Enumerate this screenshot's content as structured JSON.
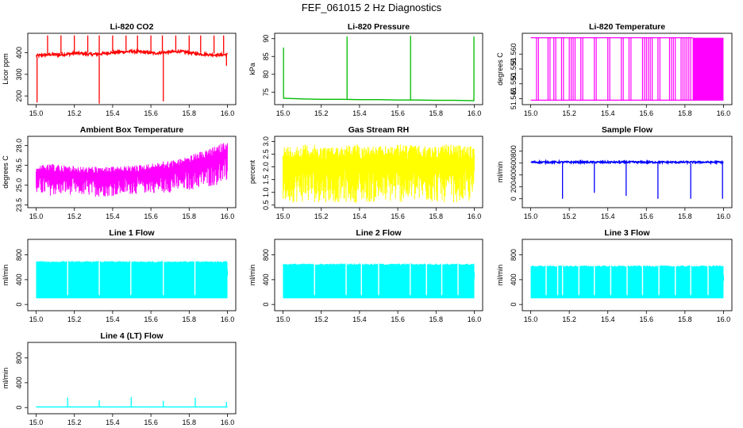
{
  "figure": {
    "title": "FEF_061015  2 Hz Diagnostics"
  },
  "chart_data": [
    {
      "type": "line",
      "title": "Li-820 CO2",
      "ylabel": "Licor ppm",
      "xlabel": "",
      "xlim": [
        15.0,
        16.0
      ],
      "ylim": [
        160,
        490
      ],
      "xticks": [
        15.0,
        15.2,
        15.4,
        15.6,
        15.8,
        16.0
      ],
      "xtick_labels": [
        "15.0",
        "15.2",
        "15.4",
        "15.6",
        "15.8",
        "16.0"
      ],
      "yticks": [
        200,
        300,
        400
      ],
      "ytick_labels": [
        "200",
        "300",
        "400"
      ],
      "color": "#ff0000",
      "style": "band",
      "band_lo": [
        380,
        383,
        386,
        384,
        388,
        392,
        389,
        386,
        388,
        393,
        396,
        398,
        400,
        398,
        394,
        392,
        395,
        398,
        400,
        396,
        390,
        387,
        385,
        384,
        386
      ],
      "band_hi": [
        392,
        396,
        398,
        397,
        400,
        405,
        402,
        399,
        401,
        406,
        409,
        411,
        413,
        410,
        407,
        404,
        407,
        410,
        412,
        408,
        402,
        399,
        397,
        396,
        398
      ],
      "spikes_up": [
        {
          "x": 15.06,
          "y": 480
        },
        {
          "x": 15.13,
          "y": 480
        },
        {
          "x": 15.2,
          "y": 480
        },
        {
          "x": 15.27,
          "y": 480
        },
        {
          "x": 15.33,
          "y": 480
        },
        {
          "x": 15.4,
          "y": 480
        },
        {
          "x": 15.47,
          "y": 480
        },
        {
          "x": 15.53,
          "y": 480
        },
        {
          "x": 15.6,
          "y": 480
        },
        {
          "x": 15.66,
          "y": 480
        },
        {
          "x": 15.73,
          "y": 480
        },
        {
          "x": 15.8,
          "y": 480
        },
        {
          "x": 15.86,
          "y": 480
        },
        {
          "x": 15.93,
          "y": 480
        },
        {
          "x": 15.98,
          "y": 480
        }
      ],
      "spikes_down": [
        {
          "x": 15.005,
          "y": 170
        },
        {
          "x": 15.33,
          "y": 165
        },
        {
          "x": 15.665,
          "y": 175
        },
        {
          "x": 15.995,
          "y": 340
        }
      ]
    },
    {
      "type": "line",
      "title": "Li-820 Pressure",
      "ylabel": "kPa",
      "xlabel": "",
      "xlim": [
        15.0,
        16.0
      ],
      "ylim": [
        71.5,
        91.5
      ],
      "xticks": [
        15.0,
        15.2,
        15.4,
        15.6,
        15.8,
        16.0
      ],
      "xtick_labels": [
        "15.0",
        "15.2",
        "15.4",
        "15.6",
        "15.8",
        "16.0"
      ],
      "yticks": [
        75,
        80,
        85,
        90
      ],
      "ytick_labels": [
        "75",
        "80",
        "85",
        "90"
      ],
      "color": "#00bb00",
      "style": "line",
      "x": [
        15.0,
        15.1,
        15.2,
        15.3,
        15.4,
        15.5,
        15.6,
        15.7,
        15.8,
        15.9,
        16.0
      ],
      "y": [
        73.3,
        73.1,
        73.0,
        73.0,
        72.9,
        72.9,
        72.8,
        72.8,
        72.7,
        72.7,
        72.6
      ],
      "spikes_up": [
        {
          "x": 15.003,
          "y": 87.5
        },
        {
          "x": 15.335,
          "y": 90.6
        },
        {
          "x": 15.667,
          "y": 90.8
        },
        {
          "x": 15.998,
          "y": 90.6
        }
      ]
    },
    {
      "type": "line",
      "title": "Li-820 Temperature",
      "ylabel": "degrees C",
      "xlabel": "",
      "xlim": [
        15.0,
        16.0
      ],
      "ylim": [
        51.543,
        51.567
      ],
      "xticks": [
        15.0,
        15.2,
        15.4,
        15.6,
        15.8,
        16.0
      ],
      "xtick_labels": [
        "15.0",
        "15.2",
        "15.4",
        "15.6",
        "15.8",
        "16.0"
      ],
      "yticks": [
        51.545,
        51.55,
        51.555,
        51.56
      ],
      "ytick_labels": [
        "51.545",
        "51.550",
        "51.555",
        "51.560"
      ],
      "color": "#ff00ff",
      "style": "steps",
      "low": 51.5445,
      "high": 51.5655,
      "toggles": [
        15.03,
        15.04,
        15.09,
        15.1,
        15.12,
        15.13,
        15.16,
        15.17,
        15.2,
        15.21,
        15.22,
        15.23,
        15.26,
        15.27,
        15.33,
        15.34,
        15.4,
        15.41,
        15.47,
        15.48,
        15.51,
        15.52,
        15.58,
        15.59,
        15.6,
        15.61,
        15.62,
        15.63,
        15.66,
        15.67,
        15.72,
        15.73,
        15.74,
        15.75,
        15.78,
        15.79,
        15.8,
        15.81,
        15.82,
        15.83
      ],
      "dense_from": 15.84
    },
    {
      "type": "line",
      "title": "Ambient Box Temperature",
      "ylabel": "degrees C",
      "xlabel": "",
      "xlim": [
        15.0,
        16.0
      ],
      "ylim": [
        23.3,
        28.7
      ],
      "xticks": [
        15.0,
        15.2,
        15.4,
        15.6,
        15.8,
        16.0
      ],
      "xtick_labels": [
        "15.0",
        "15.2",
        "15.4",
        "15.6",
        "15.8",
        "16.0"
      ],
      "yticks": [
        23.5,
        25.0,
        26.5,
        28.0
      ],
      "ytick_labels": [
        "23.5",
        "25.0",
        "26.5",
        "28.0"
      ],
      "color": "#ff00ff",
      "style": "noise",
      "band_lo": [
        24.3,
        24.2,
        24.3,
        24.2,
        24.1,
        24.2,
        24.3,
        24.4,
        24.4,
        24.5,
        24.7,
        24.9,
        25.2
      ],
      "band_hi": [
        26.5,
        26.6,
        26.5,
        26.4,
        26.4,
        26.4,
        26.5,
        26.6,
        26.8,
        27.0,
        27.4,
        27.8,
        28.4
      ]
    },
    {
      "type": "line",
      "title": "Gas Stream RH",
      "ylabel": "percent",
      "xlabel": "",
      "xlim": [
        15.0,
        16.0
      ],
      "ylim": [
        0.4,
        3.2
      ],
      "xticks": [
        15.0,
        15.2,
        15.4,
        15.6,
        15.8,
        16.0
      ],
      "xtick_labels": [
        "15.0",
        "15.2",
        "15.4",
        "15.6",
        "15.8",
        "16.0"
      ],
      "yticks": [
        0.5,
        1.0,
        1.5,
        2.0,
        2.5,
        3.0
      ],
      "ytick_labels": [
        "0.5",
        "1.0",
        "1.5",
        "2.0",
        "2.5",
        "3.0"
      ],
      "color": "#ffff00",
      "style": "noise",
      "band_lo": [
        0.6,
        0.6,
        0.6,
        0.6,
        0.6,
        0.6,
        0.6,
        0.6,
        0.6
      ],
      "band_hi": [
        2.8,
        2.9,
        2.8,
        2.9,
        2.8,
        2.9,
        2.8,
        2.9,
        2.8
      ]
    },
    {
      "type": "line",
      "title": "Sample Flow",
      "ylabel": "ml/min",
      "xlabel": "",
      "xlim": [
        15.0,
        16.0
      ],
      "ylim": [
        -0.15,
        1.05
      ],
      "xticks": [
        15.0,
        15.2,
        15.4,
        15.6,
        15.8,
        16.0
      ],
      "xtick_labels": [
        "15.0",
        "15.2",
        "15.4",
        "15.6",
        "15.8",
        "16.0"
      ],
      "yticks": [
        0,
        0.2,
        0.4,
        0.6,
        0.8
      ],
      "ytick_labels": [
        "0",
        "200",
        "400",
        "600",
        "800"
      ],
      "color": "#0000ff",
      "style": "band",
      "band_lo": [
        0.6,
        0.6,
        0.6,
        0.6,
        0.6,
        0.6,
        0.6
      ],
      "band_hi": [
        0.63,
        0.63,
        0.63,
        0.63,
        0.63,
        0.63,
        0.63
      ],
      "spikes_down": [
        {
          "x": 15.165,
          "y": 0.0
        },
        {
          "x": 15.33,
          "y": 0.1
        },
        {
          "x": 15.495,
          "y": 0.05
        },
        {
          "x": 15.66,
          "y": 0.0
        },
        {
          "x": 15.83,
          "y": 0.0
        },
        {
          "x": 15.995,
          "y": 0.0
        }
      ]
    },
    {
      "type": "line",
      "title": "Line 1 Flow",
      "ylabel": "ml/min",
      "xlabel": "",
      "xlim": [
        15.0,
        16.0
      ],
      "ylim": [
        -100,
        1050
      ],
      "xticks": [
        15.0,
        15.2,
        15.4,
        15.6,
        15.8,
        16.0
      ],
      "xtick_labels": [
        "15.0",
        "15.2",
        "15.4",
        "15.6",
        "15.8",
        "16.0"
      ],
      "yticks": [
        0,
        400,
        800
      ],
      "ytick_labels": [
        "0",
        "400",
        "800"
      ],
      "color": "#00ffff",
      "style": "fill_gaps",
      "fill_lo": 100,
      "fill_hi": 680,
      "gaps": [
        15.165,
        15.33,
        15.495,
        15.665,
        15.83
      ],
      "end_value": 560
    },
    {
      "type": "line",
      "title": "Line 2 Flow",
      "ylabel": "ml/min",
      "xlabel": "",
      "xlim": [
        15.0,
        16.0
      ],
      "ylim": [
        -100,
        1050
      ],
      "xticks": [
        15.0,
        15.2,
        15.4,
        15.6,
        15.8,
        16.0
      ],
      "xtick_labels": [
        "15.0",
        "15.2",
        "15.4",
        "15.6",
        "15.8",
        "16.0"
      ],
      "yticks": [
        0,
        400,
        800
      ],
      "ytick_labels": [
        "0",
        "400",
        "800"
      ],
      "color": "#00ffff",
      "style": "fill_gaps",
      "fill_lo": 100,
      "fill_hi": 640,
      "gaps": [
        15.165,
        15.33,
        15.41,
        15.5,
        15.665,
        15.75,
        15.83,
        15.915
      ],
      "end_value": 520
    },
    {
      "type": "line",
      "title": "Line 3 Flow",
      "ylabel": "ml/min",
      "xlabel": "",
      "xlim": [
        15.0,
        16.0
      ],
      "ylim": [
        -100,
        1050
      ],
      "xticks": [
        15.0,
        15.2,
        15.4,
        15.6,
        15.8,
        16.0
      ],
      "xtick_labels": [
        "15.0",
        "15.2",
        "15.4",
        "15.6",
        "15.8",
        "16.0"
      ],
      "yticks": [
        0,
        400,
        800
      ],
      "ytick_labels": [
        "0",
        "400",
        "800"
      ],
      "color": "#00ffff",
      "style": "fill_gaps",
      "fill_lo": 100,
      "fill_hi": 610,
      "gaps": [
        15.08,
        15.14,
        15.165,
        15.25,
        15.33,
        15.415,
        15.5,
        15.58,
        15.665,
        15.75,
        15.83,
        15.92
      ],
      "end_value": 480
    },
    {
      "type": "line",
      "title": "Line 4 (LT) Flow",
      "ylabel": "ml/min",
      "xlabel": "",
      "xlim": [
        15.0,
        16.0
      ],
      "ylim": [
        -100,
        1050
      ],
      "xticks": [
        15.0,
        15.2,
        15.4,
        15.6,
        15.8,
        16.0
      ],
      "xtick_labels": [
        "15.0",
        "15.2",
        "15.4",
        "15.6",
        "15.8",
        "16.0"
      ],
      "yticks": [
        0,
        400,
        800
      ],
      "ytick_labels": [
        "0",
        "400",
        "800"
      ],
      "color": "#00ffff",
      "style": "line",
      "x": [
        15.0,
        16.0
      ],
      "y": [
        10,
        10
      ],
      "spikes_up": [
        {
          "x": 15.165,
          "y": 160
        },
        {
          "x": 15.33,
          "y": 120
        },
        {
          "x": 15.497,
          "y": 170
        },
        {
          "x": 15.665,
          "y": 110
        },
        {
          "x": 15.832,
          "y": 160
        },
        {
          "x": 15.995,
          "y": 90
        }
      ]
    }
  ]
}
